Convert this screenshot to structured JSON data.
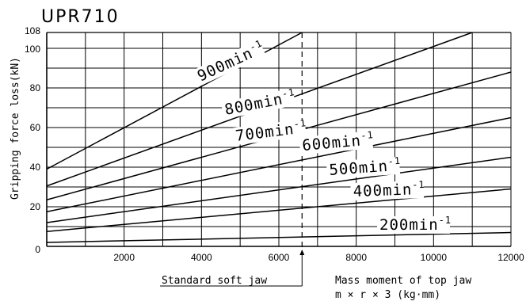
{
  "chart_data": {
    "type": "line",
    "title": "UPR710",
    "xlabel_line1": "Mass moment of top jaw",
    "xlabel_line2": "m × r × 3 (kg·mm)",
    "ylabel": "Gripping force loss(kN)",
    "xlim": [
      0,
      12000
    ],
    "ylim": [
      0,
      108
    ],
    "x_ticks": [
      "2000",
      "4000",
      "6000",
      "8000",
      "10000",
      "12000"
    ],
    "x_tick_values": [
      2000,
      4000,
      6000,
      8000,
      10000,
      12000
    ],
    "y_ticks": [
      "0",
      "20",
      "40",
      "60",
      "80",
      "100",
      "108"
    ],
    "y_tick_values": [
      0,
      20,
      40,
      60,
      80,
      100,
      108
    ],
    "grid": true,
    "annotation": {
      "label": "Standard soft jaw",
      "x": 6600
    },
    "series": [
      {
        "name": "900min-1",
        "label_base": "900min",
        "label_sup": "-1",
        "points": [
          [
            0,
            39
          ],
          [
            6600,
            108
          ]
        ]
      },
      {
        "name": "800min-1",
        "label_base": "800min",
        "label_sup": "-1",
        "points": [
          [
            0,
            30.5
          ],
          [
            11000,
            108
          ]
        ]
      },
      {
        "name": "700min-1",
        "label_base": "700min",
        "label_sup": "-1",
        "points": [
          [
            0,
            23.5
          ],
          [
            12000,
            88
          ]
        ]
      },
      {
        "name": "600min-1",
        "label_base": "600min",
        "label_sup": "-1",
        "points": [
          [
            0,
            17.5
          ],
          [
            12000,
            65
          ]
        ]
      },
      {
        "name": "500min-1",
        "label_base": "500min",
        "label_sup": "-1",
        "points": [
          [
            0,
            12
          ],
          [
            12000,
            45
          ]
        ]
      },
      {
        "name": "400min-1",
        "label_base": "400min",
        "label_sup": "-1",
        "points": [
          [
            0,
            7.5
          ],
          [
            12000,
            29
          ]
        ]
      },
      {
        "name": "200min-1",
        "label_base": "200min",
        "label_sup": "-1",
        "points": [
          [
            0,
            2
          ],
          [
            12000,
            7
          ]
        ]
      }
    ]
  }
}
